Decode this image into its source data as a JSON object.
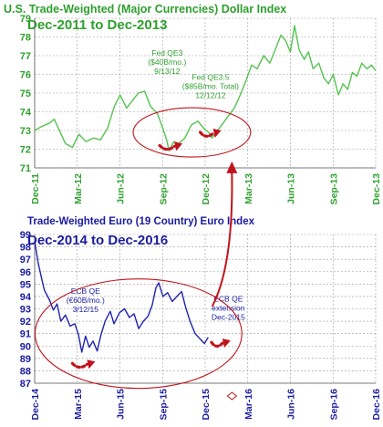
{
  "chart_data": [
    {
      "type": "line",
      "title": "U.S. Trade-Weighted (Major Currencies) Dollar Index",
      "subtitle": "Dec-2011 to Dec-2013",
      "title_color": "#2ea02e",
      "line_color": "#55c34f",
      "axis_color": "#2ea02e",
      "grid": true,
      "ylim": [
        71,
        79
      ],
      "y_ticks": [
        "71",
        "72",
        "73",
        "74",
        "75",
        "76",
        "77",
        "78",
        "79"
      ],
      "x_ticks": [
        "Dec-11",
        "Mar-12",
        "Jun-12",
        "Sep-12",
        "Dec-12",
        "Mar-13",
        "Jun-13",
        "Sep-13",
        "Dec-13"
      ],
      "x_start": "2011-12-01",
      "x_end": "2013-12-01",
      "series": [
        {
          "points": [
            [
              "2011-12-01",
              73.0
            ],
            [
              "2011-12-15",
              73.2
            ],
            [
              "2012-01-02",
              73.4
            ],
            [
              "2012-01-12",
              73.6
            ],
            [
              "2012-01-25",
              72.9
            ],
            [
              "2012-02-05",
              72.3
            ],
            [
              "2012-02-20",
              72.1
            ],
            [
              "2012-03-05",
              72.8
            ],
            [
              "2012-03-20",
              72.4
            ],
            [
              "2012-04-05",
              72.6
            ],
            [
              "2012-04-20",
              72.5
            ],
            [
              "2012-05-05",
              73.1
            ],
            [
              "2012-05-20",
              74.3
            ],
            [
              "2012-06-01",
              74.9
            ],
            [
              "2012-06-15",
              74.2
            ],
            [
              "2012-06-28",
              74.6
            ],
            [
              "2012-07-10",
              75.0
            ],
            [
              "2012-07-24",
              75.1
            ],
            [
              "2012-08-05",
              74.3
            ],
            [
              "2012-08-20",
              73.9
            ],
            [
              "2012-09-01",
              73.1
            ],
            [
              "2012-09-10",
              72.4
            ],
            [
              "2012-09-14",
              71.9
            ],
            [
              "2012-09-24",
              72.4
            ],
            [
              "2012-10-05",
              72.3
            ],
            [
              "2012-10-18",
              72.6
            ],
            [
              "2012-11-01",
              73.3
            ],
            [
              "2012-11-15",
              73.5
            ],
            [
              "2012-11-28",
              73.1
            ],
            [
              "2012-12-08",
              72.9
            ],
            [
              "2012-12-15",
              72.6
            ],
            [
              "2012-12-24",
              72.9
            ],
            [
              "2013-01-05",
              73.3
            ],
            [
              "2013-01-20",
              73.8
            ],
            [
              "2013-02-01",
              74.2
            ],
            [
              "2013-02-12",
              74.8
            ],
            [
              "2013-02-25",
              75.6
            ],
            [
              "2013-03-10",
              76.5
            ],
            [
              "2013-03-22",
              76.3
            ],
            [
              "2013-04-05",
              77.0
            ],
            [
              "2013-04-18",
              76.6
            ],
            [
              "2013-05-01",
              77.4
            ],
            [
              "2013-05-12",
              78.1
            ],
            [
              "2013-05-22",
              77.8
            ],
            [
              "2013-06-01",
              77.2
            ],
            [
              "2013-06-10",
              78.6
            ],
            [
              "2013-06-20",
              77.3
            ],
            [
              "2013-07-01",
              76.8
            ],
            [
              "2013-07-10",
              77.2
            ],
            [
              "2013-07-20",
              76.3
            ],
            [
              "2013-08-01",
              76.6
            ],
            [
              "2013-08-12",
              75.8
            ],
            [
              "2013-08-22",
              75.5
            ],
            [
              "2013-09-01",
              76.0
            ],
            [
              "2013-09-12",
              74.9
            ],
            [
              "2013-09-22",
              75.5
            ],
            [
              "2013-10-02",
              75.2
            ],
            [
              "2013-10-12",
              76.1
            ],
            [
              "2013-10-22",
              75.9
            ],
            [
              "2013-11-01",
              76.6
            ],
            [
              "2013-11-12",
              76.3
            ],
            [
              "2013-11-22",
              76.5
            ],
            [
              "2013-12-01",
              76.2
            ]
          ]
        }
      ],
      "annotations": [
        {
          "lines": [
            "Fed QE3",
            "($40B/mo.)",
            "9/13/12"
          ],
          "at": [
            "2012-09-10",
            77.0
          ]
        },
        {
          "lines": [
            "Fed QE3.5",
            "($85B/mo. Total)",
            "12/12/12"
          ],
          "at": [
            "2012-12-12",
            75.7
          ]
        }
      ]
    },
    {
      "type": "line",
      "title": "Trade-Weighted Euro (19 Country) Euro Index",
      "subtitle": "Dec-2014 to Dec-2016",
      "title_color": "#1a1aa0",
      "line_color": "#2222b0",
      "axis_color": "#1a1aa0",
      "grid": true,
      "ylim": [
        87,
        99
      ],
      "y_ticks": [
        "87",
        "88",
        "89",
        "90",
        "91",
        "92",
        "93",
        "94",
        "95",
        "96",
        "97",
        "98",
        "99"
      ],
      "x_ticks": [
        "Dec-14",
        "Mar-15",
        "Jun-15",
        "Sep-15",
        "Dec-15",
        "Mar-16",
        "Jun-16",
        "Sep-16",
        "Dec-16"
      ],
      "x_start": "2014-12-01",
      "x_end": "2016-12-01",
      "series": [
        {
          "points": [
            [
              "2014-12-01",
              98.5
            ],
            [
              "2014-12-08",
              96.8
            ],
            [
              "2014-12-15",
              95.6
            ],
            [
              "2014-12-22",
              94.5
            ],
            [
              "2015-01-02",
              93.7
            ],
            [
              "2015-01-10",
              92.9
            ],
            [
              "2015-01-18",
              93.4
            ],
            [
              "2015-01-26",
              92.0
            ],
            [
              "2015-02-05",
              92.5
            ],
            [
              "2015-02-15",
              91.6
            ],
            [
              "2015-02-25",
              91.8
            ],
            [
              "2015-03-05",
              90.9
            ],
            [
              "2015-03-12",
              89.5
            ],
            [
              "2015-03-20",
              90.8
            ],
            [
              "2015-03-28",
              89.9
            ],
            [
              "2015-04-05",
              90.4
            ],
            [
              "2015-04-14",
              89.6
            ],
            [
              "2015-04-22",
              90.9
            ],
            [
              "2015-05-01",
              92.0
            ],
            [
              "2015-05-12",
              92.8
            ],
            [
              "2015-05-20",
              91.8
            ],
            [
              "2015-06-01",
              92.7
            ],
            [
              "2015-06-12",
              93.0
            ],
            [
              "2015-06-22",
              92.3
            ],
            [
              "2015-07-02",
              92.6
            ],
            [
              "2015-07-12",
              91.4
            ],
            [
              "2015-07-22",
              92.0
            ],
            [
              "2015-08-01",
              92.4
            ],
            [
              "2015-08-10",
              93.3
            ],
            [
              "2015-08-18",
              94.7
            ],
            [
              "2015-08-24",
              95.1
            ],
            [
              "2015-09-02",
              94.0
            ],
            [
              "2015-09-12",
              94.3
            ],
            [
              "2015-09-22",
              93.6
            ],
            [
              "2015-10-02",
              94.0
            ],
            [
              "2015-10-12",
              94.4
            ],
            [
              "2015-10-20",
              93.2
            ],
            [
              "2015-10-30",
              92.0
            ],
            [
              "2015-11-10",
              91.0
            ],
            [
              "2015-11-20",
              90.6
            ],
            [
              "2015-11-30",
              90.2
            ],
            [
              "2015-12-08",
              90.7
            ]
          ]
        }
      ],
      "annotations": [
        {
          "lines": [
            "ECB QE",
            "(€60B/mo.)",
            "3/12/15"
          ],
          "at": [
            "2015-03-20",
            94.2
          ]
        },
        {
          "lines": [
            "ECB QE",
            "extension",
            "Dec-2015"
          ],
          "at": [
            "2016-01-20",
            93.6
          ]
        }
      ]
    }
  ]
}
